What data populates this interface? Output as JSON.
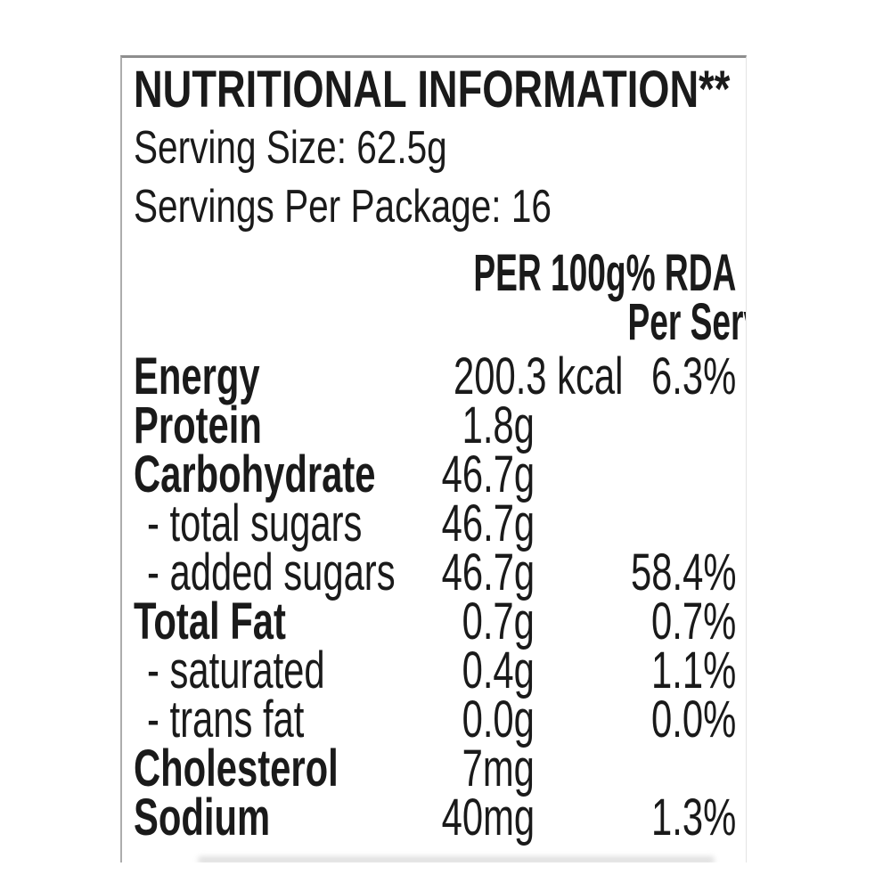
{
  "label_panel": {
    "title": "NUTRITIONAL INFORMATION**",
    "serving_size": "Serving Size: 62.5g",
    "servings_per_package": "Servings Per Package: 16",
    "columns": {
      "per_100g": "PER 100g",
      "rda_line1": "% RDA",
      "rda_line2": "Per Serve*"
    },
    "rows": [
      {
        "label": "Energy",
        "per_100g": "200.3 kcal",
        "rda_per_serve": "6.3%"
      },
      {
        "label": "Protein",
        "per_100g": "1.8g",
        "rda_per_serve": ""
      },
      {
        "label": "Carbohydrate",
        "per_100g": "46.7g",
        "rda_per_serve": ""
      },
      {
        "label": "- total sugars",
        "per_100g": "46.7g",
        "rda_per_serve": ""
      },
      {
        "label": "- added sugars",
        "per_100g": "46.7g",
        "rda_per_serve": "58.4%"
      },
      {
        "label": "Total Fat",
        "per_100g": "0.7g",
        "rda_per_serve": "0.7%"
      },
      {
        "label": "- saturated",
        "per_100g": "0.4g",
        "rda_per_serve": "1.1%"
      },
      {
        "label": "- trans fat",
        "per_100g": "0.0g",
        "rda_per_serve": "0.0%"
      },
      {
        "label": "Cholesterol",
        "per_100g": "7mg",
        "rda_per_serve": ""
      },
      {
        "label": "Sodium",
        "per_100g": "40mg",
        "rda_per_serve": "1.3%"
      }
    ],
    "colors": {
      "text": "#1a1a1a",
      "background": "#ffffff",
      "border_top": "#8e8e8e",
      "border_left": "#adadad",
      "border_right": "#e4e4e4"
    }
  }
}
